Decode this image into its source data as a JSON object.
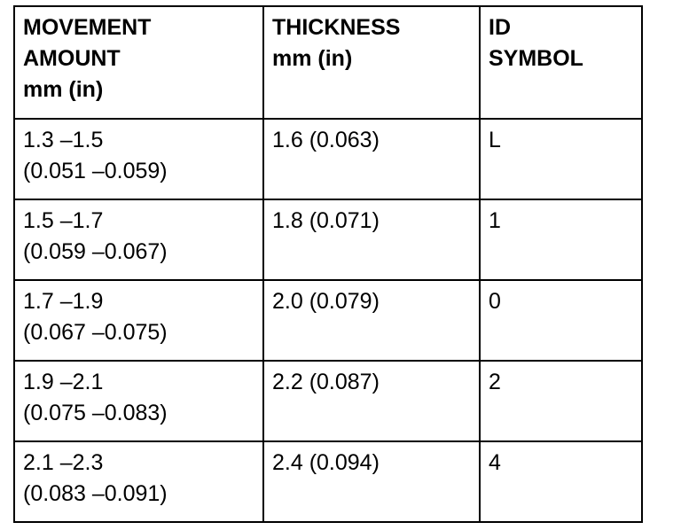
{
  "table": {
    "header": [
      [
        "MOVEMENT",
        "AMOUNT",
        "mm (in)"
      ],
      [
        "THICKNESS",
        "mm (in)"
      ],
      [
        "ID",
        "SYMBOL"
      ]
    ],
    "rows": [
      [
        [
          "1.3 –1.5",
          "(0.051 –0.059)"
        ],
        "1.6 (0.063)",
        "L"
      ],
      [
        [
          "1.5 –1.7",
          "(0.059 –0.067)"
        ],
        "1.8 (0.071)",
        "1"
      ],
      [
        [
          "1.7 –1.9",
          "(0.067 –0.075)"
        ],
        "2.0 (0.079)",
        "0"
      ],
      [
        [
          "1.9 –2.1",
          "(0.075 –0.083)"
        ],
        "2.2 (0.087)",
        "2"
      ],
      [
        [
          "2.1 –2.3",
          "(0.083 –0.091)"
        ],
        "2.4 (0.094)",
        "4"
      ]
    ]
  }
}
